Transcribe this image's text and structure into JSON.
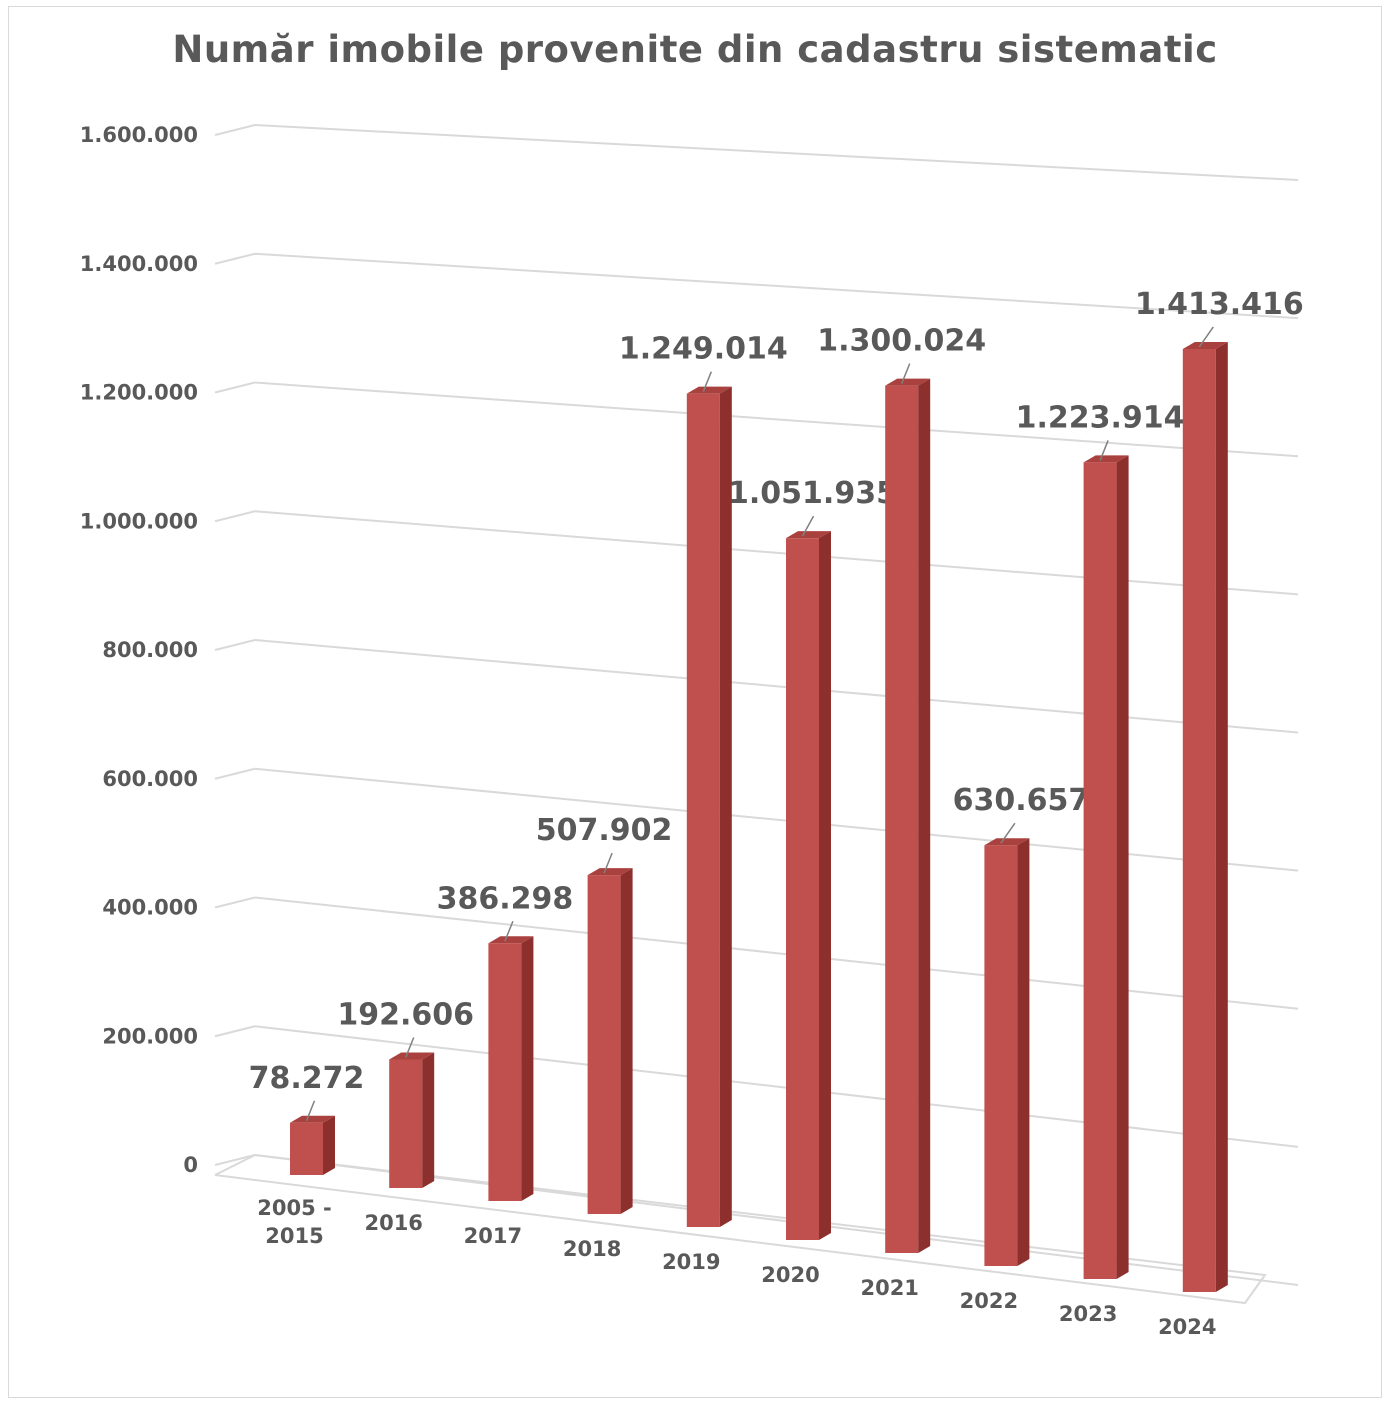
{
  "chart_data": {
    "type": "bar",
    "title": "Număr imobile provenite din cadastru sistematic",
    "categories": [
      "2005 - 2015",
      "2016",
      "2017",
      "2018",
      "2019",
      "2020",
      "2021",
      "2022",
      "2023",
      "2024"
    ],
    "series": [
      {
        "values": [
          78272,
          192606,
          386298,
          507902,
          1249014,
          1051935,
          1300024,
          630657,
          1223914,
          1413416
        ],
        "color": "#c0504d"
      }
    ],
    "data_labels": [
      "78.272",
      "192.606",
      "386.298",
      "507.902",
      "1.249.014",
      "1.051.935",
      "1.300.024",
      "630.657",
      "1.223.914",
      "1.413.416"
    ],
    "ytick_labels": [
      "0",
      "200.000",
      "400.000",
      "600.000",
      "800.000",
      "1.000.000",
      "1.200.000",
      "1.400.000",
      "1.600.000"
    ],
    "ylim": [
      0,
      1600000
    ],
    "grid": true,
    "style": "3d-column"
  }
}
